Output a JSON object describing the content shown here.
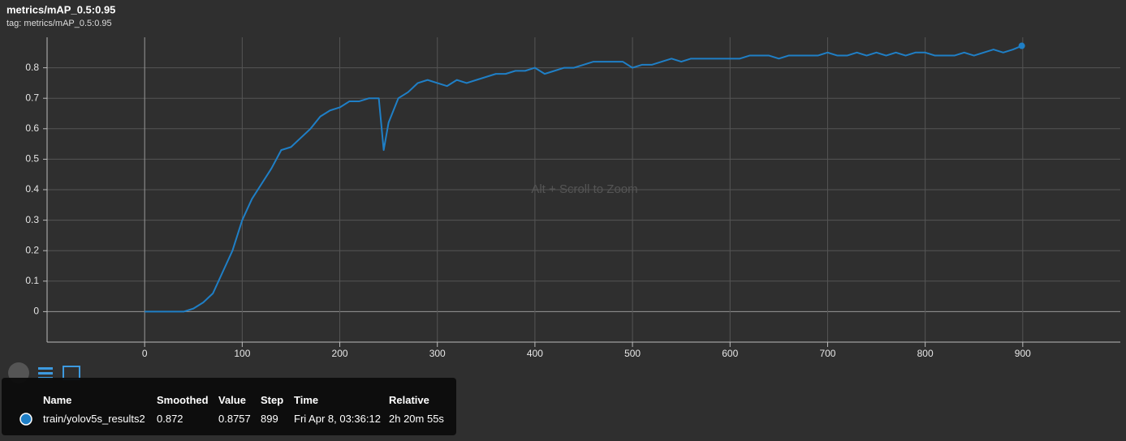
{
  "chart_data": {
    "type": "line",
    "title": "metrics/mAP_0.5:0.95",
    "subtitle": "tag: metrics/mAP_0.5:0.95",
    "hint": "Alt + Scroll to Zoom",
    "x": [
      0,
      10,
      20,
      30,
      40,
      50,
      60,
      70,
      80,
      90,
      100,
      110,
      120,
      130,
      140,
      150,
      160,
      170,
      180,
      190,
      200,
      210,
      220,
      230,
      240,
      245,
      250,
      260,
      270,
      280,
      290,
      300,
      310,
      320,
      330,
      340,
      350,
      360,
      370,
      380,
      390,
      400,
      410,
      420,
      430,
      440,
      450,
      460,
      470,
      480,
      490,
      500,
      510,
      520,
      530,
      540,
      550,
      560,
      570,
      580,
      590,
      600,
      610,
      620,
      630,
      640,
      650,
      660,
      670,
      680,
      690,
      700,
      710,
      720,
      730,
      740,
      750,
      760,
      770,
      780,
      790,
      800,
      810,
      820,
      830,
      840,
      850,
      860,
      870,
      880,
      890,
      899
    ],
    "series": [
      {
        "name": "train/yolov5s_results2",
        "color": "#1f7fc6",
        "values": [
          0,
          0,
          0,
          0,
          0,
          0.01,
          0.03,
          0.06,
          0.13,
          0.2,
          0.3,
          0.37,
          0.42,
          0.47,
          0.53,
          0.54,
          0.57,
          0.6,
          0.64,
          0.66,
          0.67,
          0.69,
          0.69,
          0.7,
          0.7,
          0.53,
          0.62,
          0.7,
          0.72,
          0.75,
          0.76,
          0.75,
          0.74,
          0.76,
          0.75,
          0.76,
          0.77,
          0.78,
          0.78,
          0.79,
          0.79,
          0.8,
          0.78,
          0.79,
          0.8,
          0.8,
          0.81,
          0.82,
          0.82,
          0.82,
          0.82,
          0.8,
          0.81,
          0.81,
          0.82,
          0.83,
          0.82,
          0.83,
          0.83,
          0.83,
          0.83,
          0.83,
          0.83,
          0.84,
          0.84,
          0.84,
          0.83,
          0.84,
          0.84,
          0.84,
          0.84,
          0.85,
          0.84,
          0.84,
          0.85,
          0.84,
          0.85,
          0.84,
          0.85,
          0.84,
          0.85,
          0.85,
          0.84,
          0.84,
          0.84,
          0.85,
          0.84,
          0.85,
          0.86,
          0.85,
          0.86,
          0.872
        ]
      }
    ],
    "xlim": [
      -100,
      1000
    ],
    "xticks": [
      0,
      100,
      200,
      300,
      400,
      500,
      600,
      700,
      800,
      900
    ],
    "ylim": [
      -0.1,
      0.9
    ],
    "yticks": [
      0,
      0.1,
      0.2,
      0.3,
      0.4,
      0.5,
      0.6,
      0.7,
      0.8
    ],
    "grid": true
  },
  "tooltip": {
    "columns": [
      "Name",
      "Smoothed",
      "Value",
      "Step",
      "Time",
      "Relative"
    ],
    "rows": [
      [
        "train/yolov5s_results2",
        0.872,
        0.8757,
        899,
        "Fri Apr 8, 03:36:12",
        "2h 20m 55s"
      ]
    ]
  }
}
